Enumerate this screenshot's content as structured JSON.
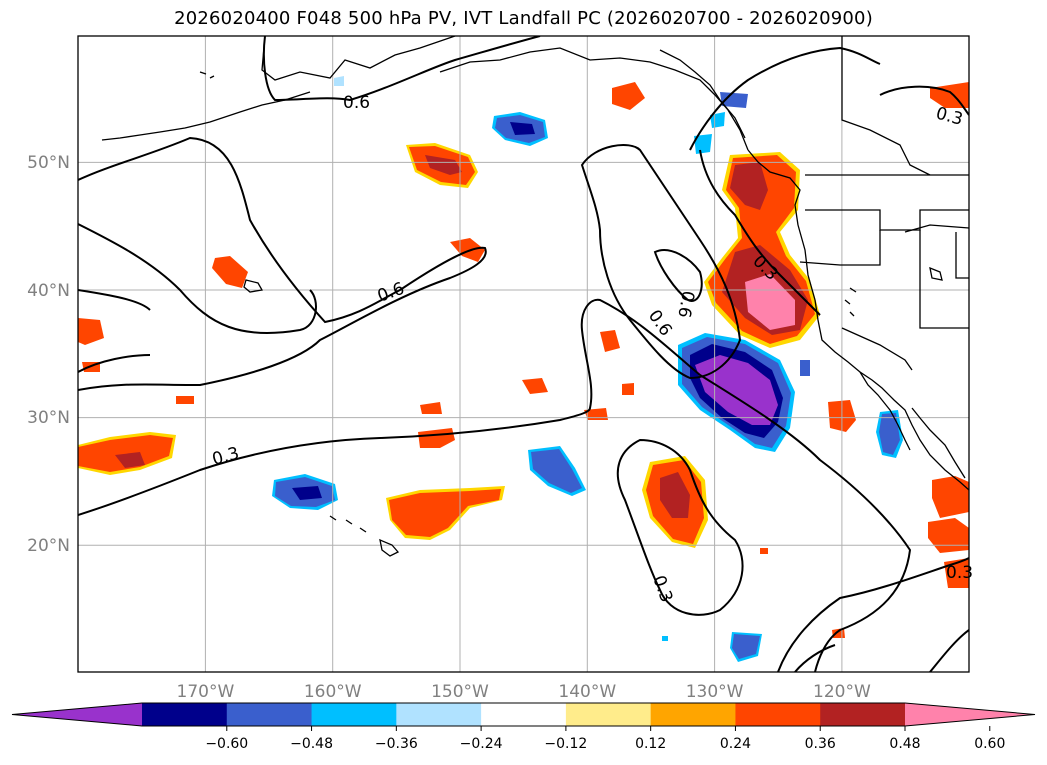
{
  "title": "2026020400 F048 500 hPa PV, IVT Landfall PC (2026020700 - 2026020900)",
  "map": {
    "projection": "PlateCarree",
    "lon_range": [
      -180,
      -110
    ],
    "lat_range": [
      10,
      60
    ],
    "lon_ticks": [
      "170°W",
      "160°W",
      "150°W",
      "140°W",
      "130°W",
      "120°W"
    ],
    "lat_ticks": [
      "50°N",
      "40°N",
      "30°N",
      "20°N"
    ],
    "grid": true,
    "land_outline_color": "#000000",
    "contours": {
      "field": "500 hPa PV",
      "color": "#000000",
      "labels": [
        "0.6",
        "0.6",
        "0.6",
        "0.3",
        "0.3",
        "0.3",
        "0.3"
      ]
    }
  },
  "colorbar": {
    "levels": [
      "−0.60",
      "−0.48",
      "−0.36",
      "−0.24",
      "−0.12",
      "0.12",
      "0.24",
      "0.36",
      "0.48",
      "0.60"
    ],
    "colors": [
      "#9932cc",
      "#00008b",
      "#3a5fcd",
      "#00bfff",
      "#b0e2ff",
      "#ffffff",
      "#ffec8b",
      "#ffa500",
      "#ff4500",
      "#b22222",
      "#ff82ab"
    ],
    "extend": "both"
  }
}
